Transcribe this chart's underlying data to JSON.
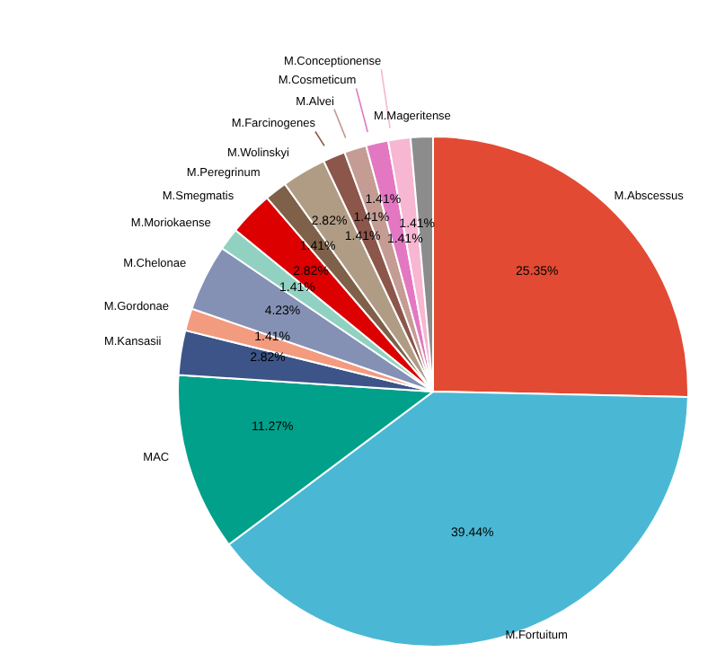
{
  "chart_data": {
    "type": "pie",
    "categories": [
      "M.Abscessus",
      "M.Fortuitum",
      "MAC",
      "M.Kansasii",
      "M.Gordonae",
      "M.Chelonae",
      "M.Moriokaense",
      "M.Smegmatis",
      "M.Peregrinum",
      "M.Wolinskyi",
      "M.Farcinogenes",
      "M.Alvei",
      "M.Cosmeticum",
      "M.Conceptionense",
      "M.Mageritense"
    ],
    "values": [
      25.35,
      39.44,
      11.27,
      2.82,
      1.41,
      4.23,
      1.41,
      2.82,
      1.41,
      2.82,
      1.41,
      1.41,
      1.41,
      1.41,
      1.41
    ],
    "value_labels": [
      "25.35%",
      "39.44%",
      "11.27%",
      "2.82%",
      "1.41%",
      "4.23%",
      "1.41%",
      "2.82%",
      "1.41%",
      "2.82%",
      "1.41%",
      "1.41%",
      "1.41%",
      "1.41%",
      "1.41%"
    ],
    "colors": [
      "#e24a33",
      "#4ab8d4",
      "#00a08a",
      "#3c5488",
      "#f39b7f",
      "#8491b4",
      "#91d1c2",
      "#dc0000",
      "#7e6148",
      "#b09c85",
      "#8c564b",
      "#c49c94",
      "#e377c2",
      "#f7b6d2",
      "#8c8c8c"
    ],
    "legend": false
  }
}
